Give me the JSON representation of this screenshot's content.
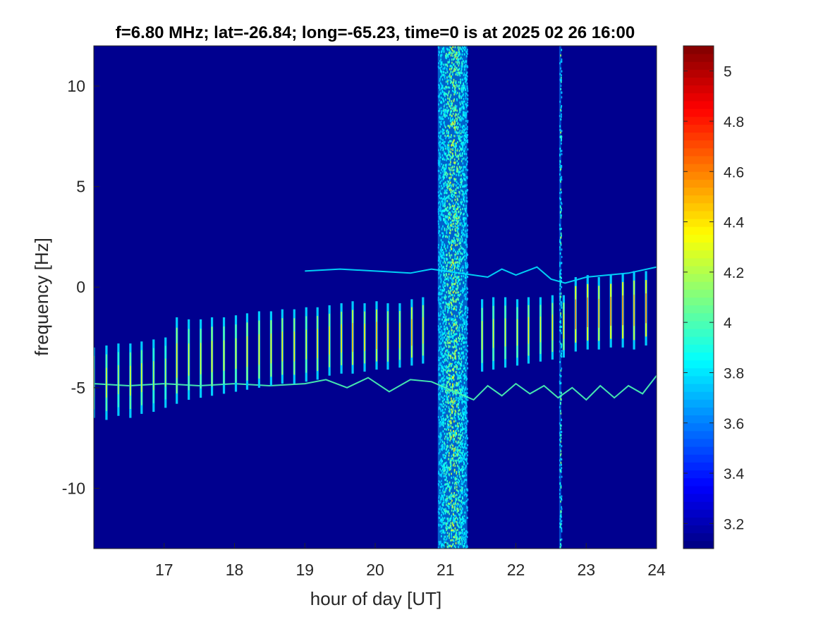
{
  "chart_data": {
    "type": "heatmap",
    "title": "f=6.80 MHz;  lat=-26.84; long=-65.23, time=0 is at 2025 02 26 16:00",
    "xlabel": "hour of day [UT]",
    "ylabel": "frequency [Hz]",
    "xlim": [
      16,
      24
    ],
    "ylim": [
      -13,
      12
    ],
    "xticks": [
      17,
      18,
      19,
      20,
      21,
      22,
      23,
      24
    ],
    "xtick_labels": [
      "17",
      "18",
      "19",
      "20",
      "21",
      "22",
      "23",
      "24"
    ],
    "yticks": [
      10,
      5,
      0,
      -5,
      -10
    ],
    "ytick_labels": [
      "10",
      "5",
      "0",
      "-5",
      "-10"
    ],
    "colormap": "jet",
    "background_color": "#00008F",
    "colorbar": {
      "range": [
        3.1,
        5.1
      ],
      "ticks": [
        5,
        4.8,
        4.6,
        4.4,
        4.2,
        4,
        3.8,
        3.6,
        3.4,
        3.2
      ],
      "tick_labels": [
        "5",
        "4.8",
        "4.6",
        "4.4",
        "4.2",
        "4",
        "3.8",
        "3.6",
        "3.4",
        "3.2"
      ]
    },
    "broadband_interference": [
      {
        "center_hour": 21.1,
        "width_hours": 0.42,
        "intensity": 3.9
      },
      {
        "center_hour": 22.63,
        "width_hours": 0.03,
        "intensity": 3.8
      }
    ],
    "doppler_trace_upper": {
      "hours": [
        19.0,
        19.5,
        20.0,
        20.5,
        20.8,
        21.6,
        21.8,
        22.0,
        22.3,
        22.5,
        22.7,
        23.0,
        23.3,
        23.6,
        24.0
      ],
      "freq_hz": [
        0.8,
        0.9,
        0.8,
        0.7,
        0.9,
        0.5,
        0.9,
        0.6,
        1.0,
        0.4,
        0.2,
        0.5,
        0.6,
        0.7,
        1.0
      ]
    },
    "doppler_trace_lower": {
      "hours": [
        16.0,
        16.5,
        17.0,
        17.5,
        18.0,
        18.5,
        19.0,
        19.3,
        19.6,
        19.9,
        20.2,
        20.5,
        20.8,
        21.4,
        21.6,
        21.8,
        22.0,
        22.2,
        22.4,
        22.6,
        22.8,
        23.0,
        23.2,
        23.4,
        23.6,
        23.8,
        24.0
      ],
      "freq_hz": [
        -4.8,
        -4.9,
        -4.8,
        -4.9,
        -4.8,
        -4.9,
        -4.8,
        -4.6,
        -5.0,
        -4.5,
        -5.2,
        -4.6,
        -4.7,
        -5.6,
        -4.9,
        -5.4,
        -4.8,
        -5.3,
        -4.9,
        -5.5,
        -5.0,
        -5.6,
        -4.9,
        -5.5,
        -4.9,
        -5.3,
        -4.4
      ]
    },
    "sounding_pulses": {
      "hours": [
        16.0,
        16.18,
        16.35,
        16.52,
        16.68,
        16.85,
        17.02,
        17.18,
        17.35,
        17.52,
        17.68,
        17.85,
        18.02,
        18.18,
        18.35,
        18.52,
        18.68,
        18.85,
        19.02,
        19.18,
        19.35,
        19.52,
        19.68,
        19.85,
        20.02,
        20.18,
        20.35,
        20.52,
        20.68,
        21.52,
        21.68,
        21.85,
        22.02,
        22.18,
        22.35,
        22.52,
        22.68,
        22.85,
        23.02,
        23.18,
        23.35,
        23.52,
        23.68,
        23.85
      ],
      "top_hz": [
        -3.0,
        -2.9,
        -2.8,
        -2.8,
        -2.7,
        -2.6,
        -2.5,
        -1.5,
        -1.6,
        -1.6,
        -1.5,
        -1.5,
        -1.4,
        -1.3,
        -1.2,
        -1.2,
        -1.1,
        -1.1,
        -1.0,
        -1.0,
        -0.9,
        -0.8,
        -0.7,
        -0.8,
        -0.7,
        -0.8,
        -0.8,
        -0.6,
        -0.5,
        -0.6,
        -0.5,
        -0.5,
        -0.6,
        -0.5,
        -0.5,
        -0.4,
        -0.4,
        0.5,
        0.6,
        0.5,
        0.6,
        0.7,
        0.8,
        0.8
      ],
      "bottom_hz": [
        -6.5,
        -6.6,
        -6.4,
        -6.5,
        -6.3,
        -6.2,
        -6.0,
        -5.8,
        -5.6,
        -5.5,
        -5.4,
        -5.3,
        -5.2,
        -5.1,
        -5.0,
        -4.9,
        -4.8,
        -4.8,
        -4.7,
        -4.6,
        -4.4,
        -4.3,
        -4.3,
        -4.2,
        -4.1,
        -4.1,
        -4.0,
        -3.9,
        -3.8,
        -4.2,
        -4.1,
        -4.0,
        -3.9,
        -3.8,
        -3.7,
        -3.6,
        -3.5,
        -3.2,
        -3.1,
        -3.1,
        -3.0,
        -3.0,
        -3.1,
        -2.9
      ],
      "peak_intensity": [
        4.4,
        4.3,
        4.2,
        4.3,
        4.3,
        4.2,
        4.2,
        4.4,
        4.3,
        4.3,
        4.4,
        4.3,
        4.3,
        4.4,
        4.4,
        4.4,
        4.4,
        4.4,
        4.3,
        4.4,
        4.4,
        4.4,
        4.5,
        4.4,
        4.5,
        4.4,
        4.4,
        4.5,
        4.4,
        4.3,
        4.3,
        4.3,
        4.3,
        4.4,
        4.3,
        4.4,
        4.4,
        4.6,
        4.6,
        4.5,
        4.6,
        4.6,
        4.5,
        4.6
      ]
    }
  }
}
